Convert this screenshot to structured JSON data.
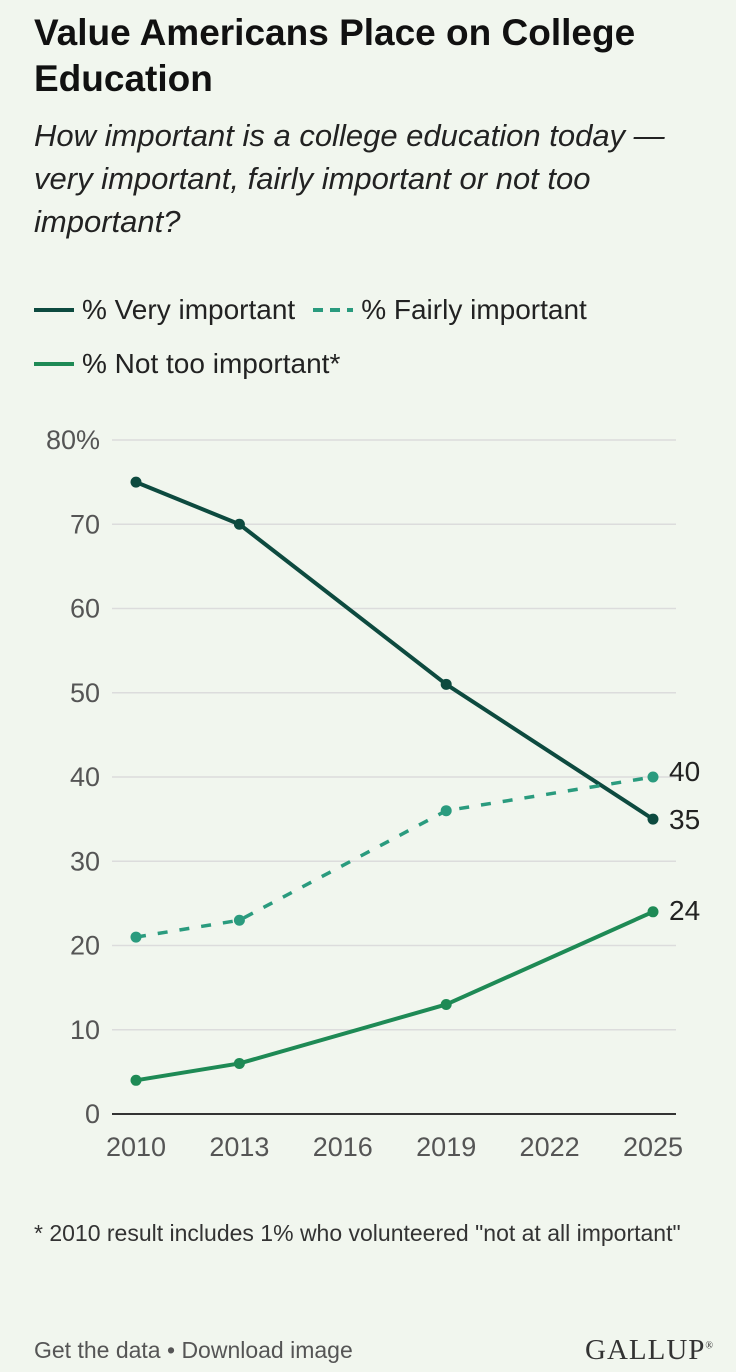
{
  "header": {
    "title": "Value Americans Place on College Education",
    "subtitle": "How important is a college education today — very important, fairly important or not too important?"
  },
  "legend": {
    "items": [
      {
        "label": "% Very important",
        "color": "#0d4a3f",
        "style": "solid"
      },
      {
        "label": "% Fairly important",
        "color": "#2a9b7e",
        "style": "dashed"
      },
      {
        "label": "% Not too important*",
        "color": "#1e8a55",
        "style": "solid"
      }
    ]
  },
  "chart_data": {
    "type": "line",
    "title": "Value Americans Place on College Education",
    "xlabel": "",
    "ylabel": "",
    "x": [
      2010,
      2013,
      2019,
      2025
    ],
    "x_ticks": [
      "2010",
      "2013",
      "2016",
      "2019",
      "2022",
      "2025"
    ],
    "x_tick_values": [
      2010,
      2013,
      2016,
      2019,
      2022,
      2025
    ],
    "y_ticks": [
      "0",
      "10",
      "20",
      "30",
      "40",
      "50",
      "60",
      "70",
      "80%"
    ],
    "y_tick_values": [
      0,
      10,
      20,
      30,
      40,
      50,
      60,
      70,
      80
    ],
    "xlim": [
      2010,
      2025
    ],
    "ylim": [
      0,
      80
    ],
    "grid": true,
    "series": [
      {
        "name": "% Very important",
        "values": [
          75,
          70,
          51,
          35
        ],
        "color": "#0d4a3f",
        "dashed": false,
        "end_label": "35"
      },
      {
        "name": "% Fairly important",
        "values": [
          21,
          23,
          36,
          40
        ],
        "color": "#2a9b7e",
        "dashed": true,
        "end_label": "40"
      },
      {
        "name": "% Not too important*",
        "values": [
          4,
          6,
          13,
          24
        ],
        "color": "#1e8a55",
        "dashed": false,
        "end_label": "24"
      }
    ]
  },
  "footnote": "* 2010 result includes 1% who volunteered \"not at all important\"",
  "footer": {
    "get_data": "Get the data",
    "separator": " • ",
    "download": "Download image",
    "logo": "GALLUP"
  }
}
